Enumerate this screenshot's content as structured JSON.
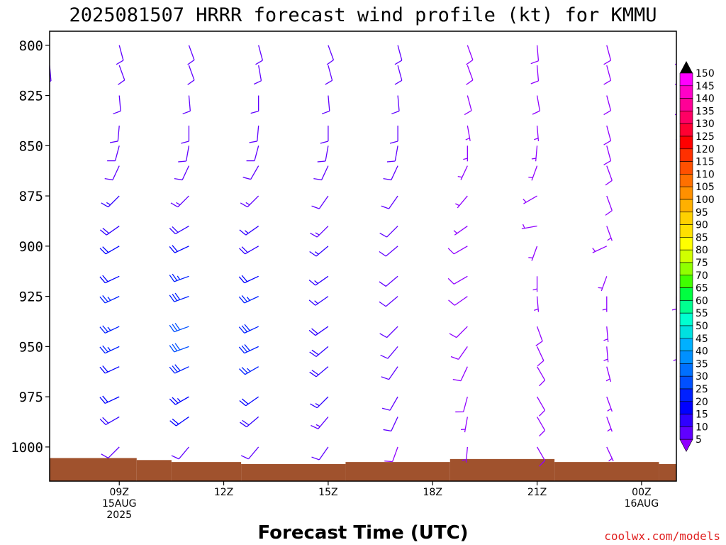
{
  "chart_data": {
    "type": "wind_barbs",
    "title": "2025081507 HRRR forecast wind profile (kt) for KMMU",
    "xlabel": "Forecast Time (UTC)",
    "credit": "coolwx.com/models",
    "x_ticks": [
      {
        "hour": 9,
        "lines": [
          "09Z",
          "15AUG",
          "2025"
        ]
      },
      {
        "hour": 12,
        "lines": [
          "12Z"
        ]
      },
      {
        "hour": 15,
        "lines": [
          "15Z"
        ]
      },
      {
        "hour": 18,
        "lines": [
          "18Z"
        ]
      },
      {
        "hour": 21,
        "lines": [
          "21Z"
        ]
      },
      {
        "hour": 24,
        "lines": [
          "00Z",
          "16AUG"
        ]
      }
    ],
    "xlim": [
      7,
      25
    ],
    "y_ticks": [
      "800",
      "825",
      "850",
      "875",
      "900",
      "925",
      "950",
      "975",
      "1000"
    ],
    "y_tick_values": [
      800,
      825,
      850,
      875,
      900,
      925,
      950,
      975,
      1000
    ],
    "ylim": [
      793,
      1017
    ],
    "colorbar": {
      "labels": [
        "150",
        "145",
        "140",
        "135",
        "130",
        "125",
        "120",
        "115",
        "110",
        "105",
        "100",
        "95",
        "90",
        "85",
        "80",
        "75",
        "70",
        "65",
        "60",
        "55",
        "50",
        "45",
        "40",
        "35",
        "30",
        "25",
        "20",
        "15",
        "10",
        "5"
      ],
      "colors": [
        "#ff00ff",
        "#ff00c8",
        "#ff0096",
        "#ff0064",
        "#ff0032",
        "#ff0000",
        "#ff3000",
        "#ff5000",
        "#ff7000",
        "#ff9000",
        "#ffb000",
        "#ffd000",
        "#ffe000",
        "#ffff00",
        "#d0ff00",
        "#90ff00",
        "#40ff00",
        "#00ff40",
        "#00ff90",
        "#00ffd0",
        "#00e0e0",
        "#00b0ff",
        "#0090ff",
        "#0070ff",
        "#0050ff",
        "#0020ff",
        "#0000ff",
        "#3000ff",
        "#6000ff",
        "#9000ff"
      ],
      "top_color": "#000000",
      "bottom_color": "#9000ff"
    },
    "surface_pressure": [
      {
        "x0": 7,
        "x1": 9.5,
        "p": 1005.5
      },
      {
        "x0": 9.5,
        "x1": 10.5,
        "p": 1006.5
      },
      {
        "x0": 10.5,
        "x1": 12.5,
        "p": 1007.5
      },
      {
        "x0": 12.5,
        "x1": 15.5,
        "p": 1008.5
      },
      {
        "x0": 15.5,
        "x1": 18.5,
        "p": 1007.5
      },
      {
        "x0": 18.5,
        "x1": 21.5,
        "p": 1006.0
      },
      {
        "x0": 21.5,
        "x1": 24.5,
        "p": 1007.5
      },
      {
        "x0": 24.5,
        "x1": 25,
        "p": 1008.5
      }
    ],
    "profiles": [
      {
        "hour": 7,
        "surface": 1000,
        "levels": [
          [
            810,
            175,
            10
          ],
          [
            825,
            185,
            10
          ],
          [
            840,
            200,
            10
          ],
          [
            850,
            220,
            12
          ],
          [
            860,
            235,
            14
          ],
          [
            875,
            240,
            16
          ],
          [
            890,
            240,
            18
          ],
          [
            900,
            240,
            20
          ],
          [
            915,
            240,
            22
          ],
          [
            925,
            240,
            22
          ],
          [
            940,
            240,
            22
          ],
          [
            950,
            240,
            22
          ],
          [
            960,
            240,
            22
          ],
          [
            975,
            240,
            20
          ],
          [
            985,
            240,
            18
          ],
          [
            1000,
            230,
            12
          ]
        ]
      },
      {
        "hour": 9,
        "surface": 1000,
        "levels": [
          [
            800,
            165,
            10
          ],
          [
            810,
            160,
            10
          ],
          [
            825,
            175,
            10
          ],
          [
            840,
            185,
            10
          ],
          [
            850,
            195,
            12
          ],
          [
            860,
            205,
            12
          ],
          [
            875,
            225,
            15
          ],
          [
            890,
            235,
            18
          ],
          [
            900,
            240,
            20
          ],
          [
            915,
            245,
            22
          ],
          [
            925,
            245,
            25
          ],
          [
            940,
            245,
            25
          ],
          [
            950,
            245,
            25
          ],
          [
            960,
            245,
            22
          ],
          [
            975,
            245,
            20
          ],
          [
            985,
            240,
            18
          ],
          [
            1000,
            225,
            12
          ]
        ]
      },
      {
        "hour": 11,
        "surface": 1004,
        "levels": [
          [
            800,
            160,
            10
          ],
          [
            810,
            160,
            10
          ],
          [
            825,
            175,
            10
          ],
          [
            840,
            180,
            10
          ],
          [
            850,
            190,
            10
          ],
          [
            860,
            205,
            12
          ],
          [
            875,
            225,
            14
          ],
          [
            890,
            240,
            18
          ],
          [
            900,
            245,
            22
          ],
          [
            915,
            250,
            25
          ],
          [
            925,
            250,
            28
          ],
          [
            940,
            250,
            30
          ],
          [
            950,
            250,
            30
          ],
          [
            960,
            245,
            28
          ],
          [
            975,
            240,
            24
          ],
          [
            985,
            235,
            20
          ],
          [
            1000,
            220,
            12
          ]
        ]
      },
      {
        "hour": 13,
        "surface": 1004,
        "levels": [
          [
            800,
            165,
            10
          ],
          [
            810,
            170,
            10
          ],
          [
            825,
            180,
            10
          ],
          [
            840,
            185,
            10
          ],
          [
            850,
            195,
            10
          ],
          [
            860,
            210,
            12
          ],
          [
            875,
            225,
            14
          ],
          [
            890,
            235,
            16
          ],
          [
            900,
            240,
            18
          ],
          [
            915,
            245,
            20
          ],
          [
            925,
            245,
            25
          ],
          [
            940,
            245,
            28
          ],
          [
            950,
            245,
            28
          ],
          [
            960,
            240,
            25
          ],
          [
            975,
            235,
            22
          ],
          [
            985,
            230,
            18
          ],
          [
            1000,
            220,
            12
          ]
        ]
      },
      {
        "hour": 15,
        "surface": 1004,
        "levels": [
          [
            800,
            160,
            10
          ],
          [
            810,
            165,
            10
          ],
          [
            825,
            175,
            10
          ],
          [
            840,
            180,
            10
          ],
          [
            850,
            190,
            10
          ],
          [
            860,
            205,
            12
          ],
          [
            875,
            215,
            12
          ],
          [
            890,
            225,
            14
          ],
          [
            900,
            230,
            16
          ],
          [
            915,
            235,
            16
          ],
          [
            925,
            235,
            16
          ],
          [
            940,
            235,
            18
          ],
          [
            950,
            230,
            18
          ],
          [
            960,
            230,
            18
          ],
          [
            975,
            225,
            16
          ],
          [
            985,
            220,
            14
          ],
          [
            1000,
            215,
            12
          ]
        ]
      },
      {
        "hour": 17,
        "surface": 1004,
        "levels": [
          [
            800,
            165,
            10
          ],
          [
            810,
            165,
            10
          ],
          [
            825,
            175,
            10
          ],
          [
            840,
            180,
            10
          ],
          [
            850,
            190,
            10
          ],
          [
            860,
            205,
            10
          ],
          [
            875,
            215,
            10
          ],
          [
            890,
            225,
            12
          ],
          [
            900,
            230,
            12
          ],
          [
            915,
            230,
            12
          ],
          [
            925,
            230,
            12
          ],
          [
            940,
            225,
            12
          ],
          [
            950,
            220,
            12
          ],
          [
            960,
            215,
            10
          ],
          [
            975,
            210,
            10
          ],
          [
            985,
            205,
            10
          ],
          [
            1000,
            200,
            8
          ]
        ]
      },
      {
        "hour": 19,
        "surface": 1002,
        "levels": [
          [
            800,
            160,
            8
          ],
          [
            810,
            160,
            8
          ],
          [
            825,
            165,
            8
          ],
          [
            840,
            170,
            6
          ],
          [
            850,
            180,
            6
          ],
          [
            860,
            205,
            6
          ],
          [
            875,
            220,
            6
          ],
          [
            890,
            235,
            6
          ],
          [
            900,
            240,
            8
          ],
          [
            915,
            240,
            8
          ],
          [
            925,
            235,
            8
          ],
          [
            940,
            225,
            8
          ],
          [
            950,
            215,
            8
          ],
          [
            960,
            205,
            8
          ],
          [
            975,
            195,
            8
          ],
          [
            985,
            190,
            6
          ],
          [
            1000,
            185,
            6
          ]
        ]
      },
      {
        "hour": 21,
        "surface": 1002,
        "levels": [
          [
            800,
            175,
            8
          ],
          [
            810,
            175,
            8
          ],
          [
            825,
            170,
            8
          ],
          [
            840,
            175,
            6
          ],
          [
            850,
            185,
            6
          ],
          [
            860,
            200,
            6
          ],
          [
            875,
            240,
            6
          ],
          [
            890,
            260,
            6
          ],
          [
            900,
            200,
            6
          ],
          [
            915,
            180,
            6
          ],
          [
            925,
            175,
            6
          ],
          [
            940,
            160,
            8
          ],
          [
            950,
            155,
            8
          ],
          [
            960,
            150,
            8
          ],
          [
            975,
            150,
            8
          ],
          [
            985,
            150,
            8
          ],
          [
            1000,
            150,
            8
          ]
        ]
      },
      {
        "hour": 23,
        "surface": 1004,
        "levels": [
          [
            800,
            165,
            8
          ],
          [
            810,
            165,
            8
          ],
          [
            825,
            165,
            8
          ],
          [
            840,
            165,
            8
          ],
          [
            850,
            165,
            8
          ],
          [
            860,
            160,
            8
          ],
          [
            875,
            160,
            8
          ],
          [
            890,
            160,
            6
          ],
          [
            900,
            245,
            6
          ],
          [
            915,
            200,
            6
          ],
          [
            925,
            180,
            6
          ],
          [
            940,
            175,
            6
          ],
          [
            950,
            175,
            6
          ],
          [
            960,
            165,
            6
          ],
          [
            975,
            160,
            6
          ],
          [
            985,
            160,
            6
          ],
          [
            1000,
            155,
            6
          ]
        ]
      },
      {
        "hour": 25,
        "surface": 1004,
        "levels": [
          [
            800,
            160,
            8
          ],
          [
            810,
            160,
            8
          ],
          [
            825,
            160,
            8
          ],
          [
            840,
            165,
            6
          ],
          [
            925,
            180,
            6
          ],
          [
            950,
            175,
            6
          ]
        ]
      }
    ]
  }
}
